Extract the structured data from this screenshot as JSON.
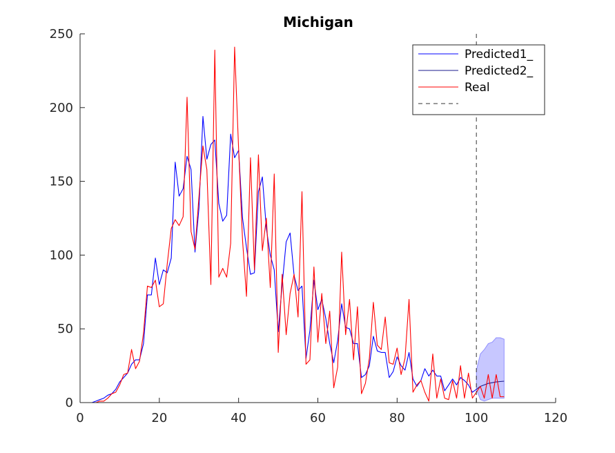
{
  "chart_data": {
    "type": "line",
    "title": "Michigan",
    "xlabel": "",
    "ylabel": "",
    "xlim": [
      0,
      120
    ],
    "ylim": [
      0,
      250
    ],
    "xticks": [
      0,
      20,
      40,
      60,
      80,
      100,
      120
    ],
    "yticks": [
      0,
      50,
      100,
      150,
      200,
      250
    ],
    "grid": false,
    "legend_position": "top-right",
    "vline_x": 100,
    "series": [
      {
        "name": "Predicted1_",
        "color": "#0000ff",
        "x": [
          1,
          2,
          3,
          4,
          5,
          6,
          7,
          8,
          9,
          10,
          11,
          12,
          13,
          14,
          15,
          16,
          17,
          18,
          19,
          20,
          21,
          22,
          23,
          24,
          25,
          26,
          27,
          28,
          29,
          30,
          31,
          32,
          33,
          34,
          35,
          36,
          37,
          38,
          39,
          40,
          41,
          42,
          43,
          44,
          45,
          46,
          47,
          48,
          49,
          50,
          51,
          52,
          53,
          54,
          55,
          56,
          57,
          58,
          59,
          60,
          61,
          62,
          63,
          64,
          65,
          66,
          67,
          68,
          69,
          70,
          71,
          72,
          73,
          74,
          75,
          76,
          77,
          78,
          79,
          80,
          81,
          82,
          83,
          84,
          85,
          86,
          87,
          88,
          89,
          90,
          91,
          92,
          93,
          94,
          95,
          96,
          97,
          98,
          99,
          100
        ],
        "y": [
          0,
          0,
          0,
          1,
          2,
          3,
          5,
          6,
          9,
          14,
          17,
          20,
          26,
          29,
          29,
          40,
          73,
          73,
          98,
          80,
          90,
          88,
          98,
          163,
          140,
          145,
          167,
          158,
          102,
          132,
          194,
          165,
          175,
          178,
          135,
          123,
          127,
          182,
          166,
          171,
          125,
          105,
          87,
          88,
          143,
          153,
          118,
          100,
          90,
          48,
          80,
          109,
          115,
          86,
          76,
          79,
          30,
          49,
          83,
          63,
          70,
          57,
          40,
          27,
          42,
          67,
          51,
          50,
          40,
          40,
          17,
          19,
          25,
          45,
          35,
          34,
          34,
          17,
          21,
          31,
          25,
          22,
          34,
          16,
          11,
          15,
          23,
          18,
          22,
          18,
          18,
          8,
          12,
          16,
          12,
          17,
          15,
          12,
          7,
          9
        ]
      },
      {
        "name": "Predicted2_",
        "color": "#1a1a8c",
        "x": [
          100,
          101,
          102,
          103,
          104,
          105,
          106,
          107
        ],
        "y": [
          9,
          11,
          12,
          13,
          13.5,
          14,
          14.3,
          14.5
        ]
      },
      {
        "name": "Real",
        "color": "#ff0000",
        "x": [
          1,
          2,
          3,
          4,
          5,
          6,
          7,
          8,
          9,
          10,
          11,
          12,
          13,
          14,
          15,
          16,
          17,
          18,
          19,
          20,
          21,
          22,
          23,
          24,
          25,
          26,
          27,
          28,
          29,
          30,
          31,
          32,
          33,
          34,
          35,
          36,
          37,
          38,
          39,
          40,
          41,
          42,
          43,
          44,
          45,
          46,
          47,
          48,
          49,
          50,
          51,
          52,
          53,
          54,
          55,
          56,
          57,
          58,
          59,
          60,
          61,
          62,
          63,
          64,
          65,
          66,
          67,
          68,
          69,
          70,
          71,
          72,
          73,
          74,
          75,
          76,
          77,
          78,
          79,
          80,
          81,
          82,
          83,
          84,
          85,
          86,
          87,
          88,
          89,
          90,
          91,
          92,
          93,
          94,
          95,
          96,
          97,
          98,
          99,
          100,
          101,
          102,
          103,
          104,
          105,
          106,
          107
        ],
        "y": [
          0,
          0,
          0,
          0,
          1,
          1,
          3,
          6,
          7,
          12,
          19,
          20,
          36,
          23,
          28,
          47,
          79,
          78,
          83,
          65,
          67,
          94,
          118,
          124,
          120,
          126,
          207,
          116,
          104,
          140,
          174,
          158,
          80,
          239,
          85,
          91,
          85,
          108,
          241,
          172,
          110,
          72,
          166,
          90,
          168,
          103,
          125,
          78,
          155,
          34,
          87,
          46,
          74,
          87,
          58,
          143,
          26,
          29,
          92,
          41,
          74,
          40,
          62,
          10,
          24,
          102,
          46,
          70,
          29,
          65,
          6,
          13,
          30,
          68,
          39,
          36,
          58,
          27,
          26,
          37,
          19,
          30,
          70,
          7,
          12,
          15,
          7,
          1,
          33,
          3,
          16,
          3,
          2,
          15,
          3,
          25,
          3,
          20,
          3,
          7,
          11,
          3,
          19,
          3,
          19,
          4,
          4
        ]
      },
      {
        "name": "",
        "color": "#333333",
        "dashed": true
      }
    ],
    "band": {
      "color": "#0000ff",
      "opacity": 0.22,
      "x": [
        100,
        101,
        102,
        103,
        104,
        105,
        106,
        107
      ],
      "upper": [
        22,
        33,
        36,
        40,
        41,
        44,
        44,
        43
      ],
      "lower": [
        9,
        2,
        1,
        2,
        3,
        3,
        3,
        3
      ]
    }
  }
}
